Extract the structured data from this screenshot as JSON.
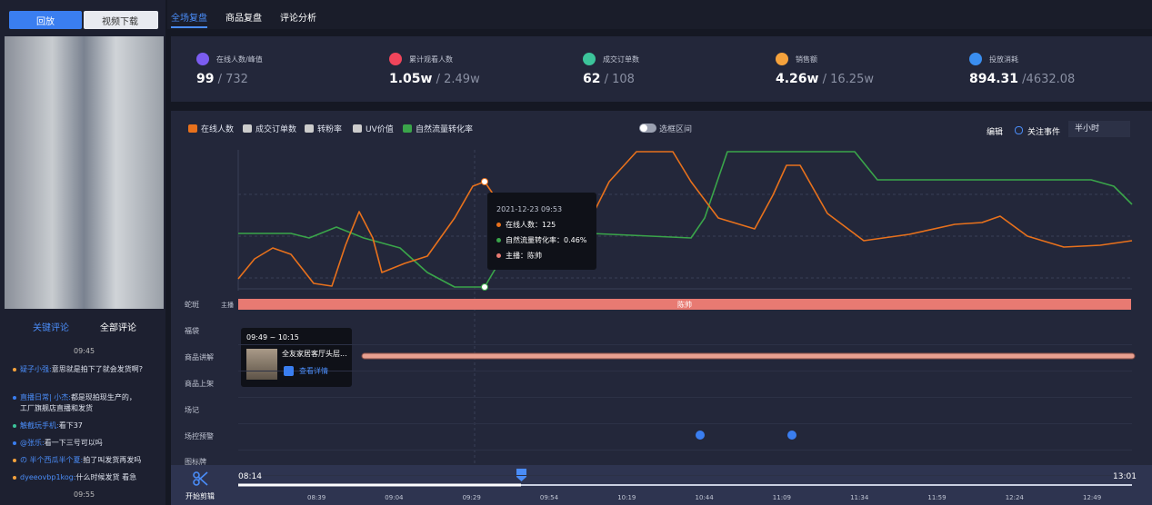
{
  "left_panel": {
    "tabs": [
      "回放",
      "视频下载"
    ],
    "comment_tabs": [
      "关键评论",
      "全部评论"
    ],
    "times": [
      "09:45",
      "09:55"
    ],
    "comments": [
      {
        "user": "疑子小强:",
        "text": "意思就是拍下了就会发货啊?"
      },
      {
        "user": "直播日常| 小杰:",
        "text": "都是现拍现生产的，工厂旗舰店直播和发货"
      },
      {
        "user": "触截玩手机:",
        "text": "看下37"
      },
      {
        "user": "@张乐:",
        "text": "看一下三号可以吗"
      },
      {
        "user": "の 半个西瓜半个夏:",
        "text": "拍了叫发货再发吗"
      },
      {
        "user": "dyeeovbp1kog:",
        "text": "什么时候发货 看急"
      }
    ]
  },
  "top_tabs": [
    "全场复盘",
    "商品复盘",
    "评论分析"
  ],
  "stats": [
    {
      "label": "在线人数/峰值",
      "value": "99",
      "total": "/ 732",
      "color": "#7b5cf0"
    },
    {
      "label": "累计观看人数",
      "value": "1.05w",
      "total": "/ 2.49w",
      "color": "#f0455b"
    },
    {
      "label": "成交订单数",
      "value": "62",
      "total": "/ 108",
      "color": "#3cc49a"
    },
    {
      "label": "销售额",
      "value": "4.26w",
      "total": "/ 16.25w",
      "color": "#f5a23c"
    },
    {
      "label": "投放消耗",
      "value": "894.31",
      "total": "/4632.08",
      "color": "#3a8ef0"
    }
  ],
  "chart": {
    "legend": [
      {
        "name": "在线人数",
        "color": "#e8711c"
      },
      {
        "name": "成交订单数",
        "color": "#cccccc"
      },
      {
        "name": "转粉率",
        "color": "#cccccc"
      },
      {
        "name": "UV价值",
        "color": "#cccccc"
      },
      {
        "name": "自然流量转化率",
        "color": "#3aa54a"
      }
    ],
    "range_toggle": "选框区间",
    "edit": "编辑",
    "events": "关注事件",
    "interval": "半小时",
    "tooltip": {
      "time": "2021-12-23 09:53",
      "lines": [
        "在线人数：125",
        "自然流量转化率：0.46%",
        "主播：陈帅"
      ]
    },
    "rows": [
      "蛇斑",
      "福袋",
      "商品讲解",
      "商品上架",
      "场记",
      "场控预警",
      "图标牌"
    ],
    "host_tag": "主播",
    "host_bar": "陈帅",
    "product_popup": {
      "time": "09:49 ~ 10:15",
      "name": "全友家居客厅头层...",
      "link": "查看详情"
    }
  },
  "timeline": {
    "action": "开始剪辑",
    "start": "08:14",
    "end": "13:01",
    "ticks": [
      "08:39",
      "09:04",
      "09:29",
      "09:54",
      "10:19",
      "10:44",
      "11:09",
      "11:34",
      "11:59",
      "12:24",
      "12:49"
    ]
  }
}
